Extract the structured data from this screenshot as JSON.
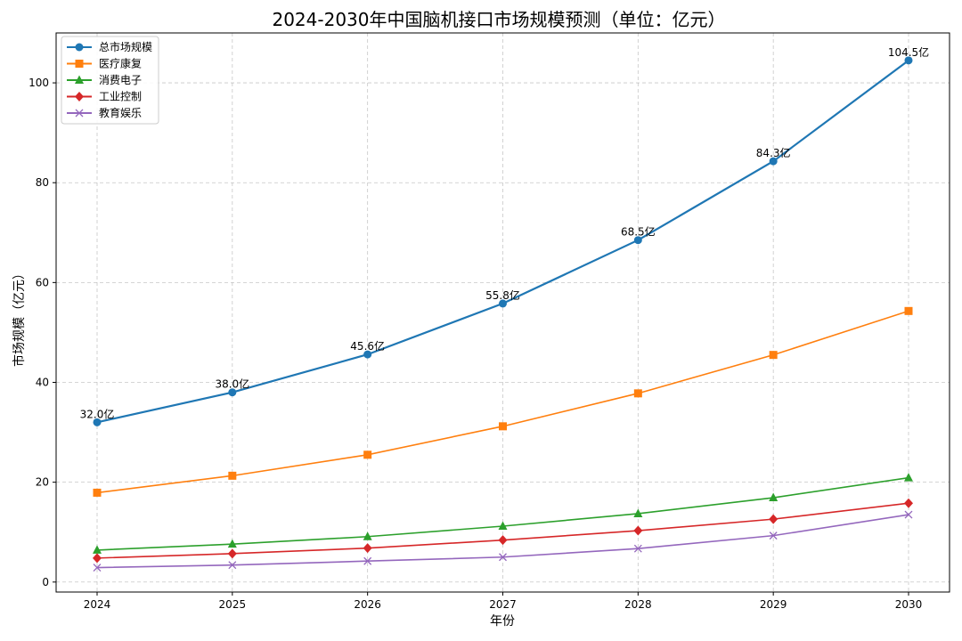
{
  "chart_data": {
    "type": "line",
    "title": "2024-2030年中国脑机接口市场规模预测（单位：亿元）",
    "xlabel": "年份",
    "ylabel": "市场规模（亿元）",
    "categories": [
      "2024",
      "2025",
      "2026",
      "2027",
      "2028",
      "2029",
      "2030"
    ],
    "ylim": [
      -2,
      110
    ],
    "yticks": [
      0,
      20,
      40,
      60,
      80,
      100
    ],
    "grid": true,
    "legend_position": "top-left",
    "series": [
      {
        "name": "总市场规模",
        "color": "#1f77b4",
        "marker": "circle",
        "values": [
          32.0,
          38.0,
          45.6,
          55.8,
          68.5,
          84.3,
          104.5
        ]
      },
      {
        "name": "医疗康复",
        "color": "#ff7f0e",
        "marker": "square",
        "values": [
          17.9,
          21.3,
          25.5,
          31.2,
          37.8,
          45.5,
          54.3
        ]
      },
      {
        "name": "消费电子",
        "color": "#2ca02c",
        "marker": "triangle",
        "values": [
          6.4,
          7.6,
          9.1,
          11.2,
          13.7,
          16.9,
          20.9
        ]
      },
      {
        "name": "工业控制",
        "color": "#d62728",
        "marker": "diamond",
        "values": [
          4.8,
          5.7,
          6.8,
          8.4,
          10.3,
          12.6,
          15.8
        ]
      },
      {
        "name": "教育娱乐",
        "color": "#9467bd",
        "marker": "x",
        "values": [
          2.9,
          3.4,
          4.2,
          5.0,
          6.7,
          9.3,
          13.5
        ]
      }
    ],
    "annotations": [
      "32.0亿",
      "38.0亿",
      "45.6亿",
      "55.8亿",
      "68.5亿",
      "84.3亿",
      "104.5亿"
    ]
  }
}
